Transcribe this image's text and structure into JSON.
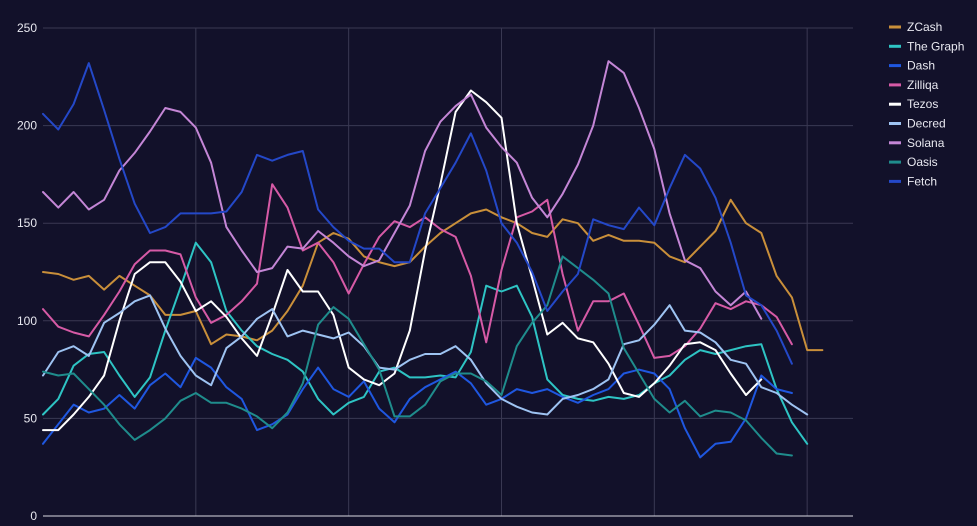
{
  "chart_data": {
    "type": "line",
    "title": "",
    "xlabel": "",
    "ylabel": "",
    "ylim": [
      0,
      250
    ],
    "yticks": [
      0,
      50,
      100,
      150,
      200,
      250
    ],
    "x_count": 54,
    "x_gridlines_every": 10,
    "grid": true,
    "legend_position": "right",
    "series": [
      {
        "name": "ZCash",
        "color": "#c98f3a",
        "values": [
          125,
          124,
          121,
          123,
          116,
          123,
          118,
          113,
          103,
          103,
          105,
          88,
          93,
          92,
          90,
          95,
          105,
          118,
          140,
          145,
          142,
          133,
          130,
          128,
          130,
          138,
          145,
          150,
          155,
          157,
          153,
          150,
          145,
          143,
          152,
          150,
          141,
          144,
          141,
          141,
          140,
          133,
          130,
          138,
          146,
          162,
          150,
          145,
          123,
          112,
          85,
          85
        ]
      },
      {
        "name": "The Graph",
        "color": "#2ec4c4",
        "values": [
          52,
          60,
          77,
          83,
          84,
          72,
          61,
          71,
          95,
          117,
          140,
          130,
          105,
          95,
          87,
          83,
          80,
          74,
          60,
          52,
          58,
          61,
          74,
          76,
          71,
          71,
          72,
          71,
          84,
          118,
          115,
          118,
          102,
          70,
          62,
          60,
          59,
          61,
          60,
          62,
          68,
          72,
          80,
          85,
          83,
          85,
          87,
          88,
          65,
          48,
          37
        ]
      },
      {
        "name": "Dash",
        "color": "#1f57e0",
        "values": [
          37,
          47,
          57,
          53,
          55,
          62,
          55,
          67,
          73,
          66,
          81,
          76,
          66,
          60,
          44,
          47,
          52,
          65,
          76,
          65,
          61,
          69,
          55,
          48,
          60,
          66,
          70,
          74,
          68,
          57,
          60,
          65,
          63,
          65,
          61,
          58,
          62,
          65,
          73,
          75,
          73,
          65,
          45,
          30,
          37,
          38,
          50,
          72,
          65,
          63
        ]
      },
      {
        "name": "Zilliqa",
        "color": "#d65aa6",
        "values": [
          106,
          97,
          94,
          92,
          103,
          115,
          129,
          136,
          136,
          134,
          112,
          99,
          103,
          110,
          119,
          170,
          158,
          136,
          140,
          130,
          114,
          129,
          143,
          151,
          148,
          153,
          147,
          143,
          123,
          89,
          126,
          153,
          156,
          162,
          124,
          95,
          110,
          110,
          114,
          98,
          81,
          82,
          87,
          96,
          109,
          106,
          110,
          108,
          102,
          88
        ]
      },
      {
        "name": "Tezos",
        "color": "#ffffff",
        "values": [
          44,
          44,
          52,
          61,
          72,
          100,
          124,
          130,
          130,
          120,
          105,
          110,
          102,
          91,
          82,
          103,
          126,
          115,
          115,
          103,
          76,
          70,
          67,
          73,
          95,
          136,
          170,
          207,
          218,
          212,
          204,
          150,
          122,
          93,
          99,
          91,
          89,
          78,
          63,
          61,
          68,
          77,
          88,
          89,
          85,
          73,
          62,
          70
        ]
      },
      {
        "name": "Decred",
        "color": "#9ec3f2",
        "values": [
          72,
          84,
          87,
          82,
          99,
          104,
          110,
          113,
          96,
          82,
          72,
          67,
          86,
          92,
          101,
          106,
          92,
          95,
          93,
          91,
          94,
          87,
          76,
          75,
          80,
          83,
          83,
          87,
          80,
          68,
          60,
          56,
          53,
          52,
          60,
          62,
          65,
          70,
          88,
          90,
          98,
          108,
          95,
          94,
          89,
          80,
          78,
          66,
          63,
          57,
          52
        ]
      },
      {
        "name": "Solana",
        "color": "#c486d6",
        "values": [
          166,
          158,
          166,
          157,
          162,
          177,
          186,
          197,
          209,
          207,
          199,
          181,
          148,
          136,
          125,
          127,
          138,
          137,
          146,
          140,
          133,
          128,
          131,
          145,
          159,
          187,
          202,
          210,
          216,
          199,
          189,
          181,
          163,
          153,
          165,
          180,
          200,
          233,
          227,
          209,
          188,
          155,
          131,
          127,
          115,
          108,
          115,
          101
        ]
      },
      {
        "name": "Oasis",
        "color": "#1f8c8c",
        "values": [
          74,
          72,
          73,
          65,
          57,
          47,
          39,
          44,
          50,
          59,
          63,
          58,
          58,
          55,
          51,
          45,
          53,
          68,
          98,
          107,
          101,
          88,
          75,
          51,
          51,
          57,
          69,
          73,
          73,
          69,
          62,
          87,
          99,
          108,
          133,
          127,
          121,
          114,
          86,
          73,
          60,
          53,
          59,
          51,
          54,
          53,
          49,
          40,
          32,
          31
        ]
      },
      {
        "name": "Fetch",
        "color": "#2448c8",
        "values": [
          206,
          198,
          211,
          232,
          208,
          183,
          160,
          145,
          148,
          155,
          155,
          155,
          156,
          166,
          185,
          182,
          185,
          187,
          157,
          148,
          141,
          137,
          137,
          130,
          130,
          155,
          168,
          181,
          196,
          177,
          150,
          140,
          125,
          105,
          115,
          124,
          152,
          149,
          147,
          158,
          149,
          168,
          185,
          178,
          163,
          140,
          113,
          108,
          95,
          78
        ]
      }
    ]
  }
}
